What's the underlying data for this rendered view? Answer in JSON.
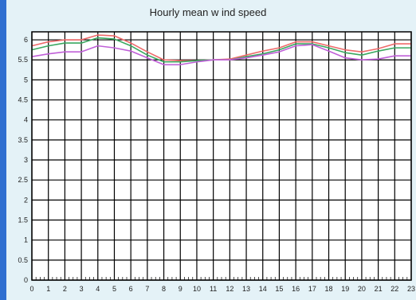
{
  "chart_data": {
    "type": "line",
    "title": "Hourly mean w ind speed",
    "xlabel": "",
    "ylabel": "",
    "x": [
      0,
      1,
      2,
      3,
      4,
      5,
      6,
      7,
      8,
      9,
      10,
      11,
      12,
      13,
      14,
      15,
      16,
      17,
      18,
      19,
      20,
      21,
      22,
      23
    ],
    "x_tick_labels": [
      "0",
      "1",
      "2",
      "3",
      "4",
      "5",
      "6",
      "7",
      "8",
      "9",
      "10",
      "11",
      "12",
      "13",
      "14",
      "15",
      "16",
      "17",
      "18",
      "19",
      "20",
      "21",
      "22",
      "23"
    ],
    "y_tick_labels": [
      "0",
      "0.5",
      "1",
      "1.5",
      "2",
      "2.5",
      "3",
      "3.5",
      "4",
      "4.5",
      "5",
      "5.5",
      "6"
    ],
    "xlim": [
      0,
      23
    ],
    "ylim": [
      0,
      6.2
    ],
    "grid": true,
    "series": [
      {
        "color": "#ee6a6a",
        "values": [
          5.85,
          5.95,
          6.0,
          6.0,
          6.12,
          6.1,
          5.92,
          5.7,
          5.5,
          5.48,
          5.48,
          5.5,
          5.52,
          5.62,
          5.72,
          5.8,
          5.95,
          5.95,
          5.85,
          5.75,
          5.7,
          5.78,
          5.9,
          5.9
        ]
      },
      {
        "color": "#3aa860",
        "values": [
          5.75,
          5.85,
          5.92,
          5.92,
          6.05,
          6.02,
          5.85,
          5.62,
          5.45,
          5.45,
          5.48,
          5.5,
          5.5,
          5.58,
          5.65,
          5.75,
          5.9,
          5.9,
          5.8,
          5.68,
          5.62,
          5.72,
          5.8,
          5.8
        ]
      },
      {
        "color": "#c060d8",
        "values": [
          5.58,
          5.65,
          5.7,
          5.7,
          5.85,
          5.8,
          5.72,
          5.55,
          5.38,
          5.38,
          5.45,
          5.5,
          5.5,
          5.55,
          5.62,
          5.7,
          5.85,
          5.88,
          5.72,
          5.55,
          5.5,
          5.52,
          5.6,
          5.6
        ]
      }
    ]
  }
}
